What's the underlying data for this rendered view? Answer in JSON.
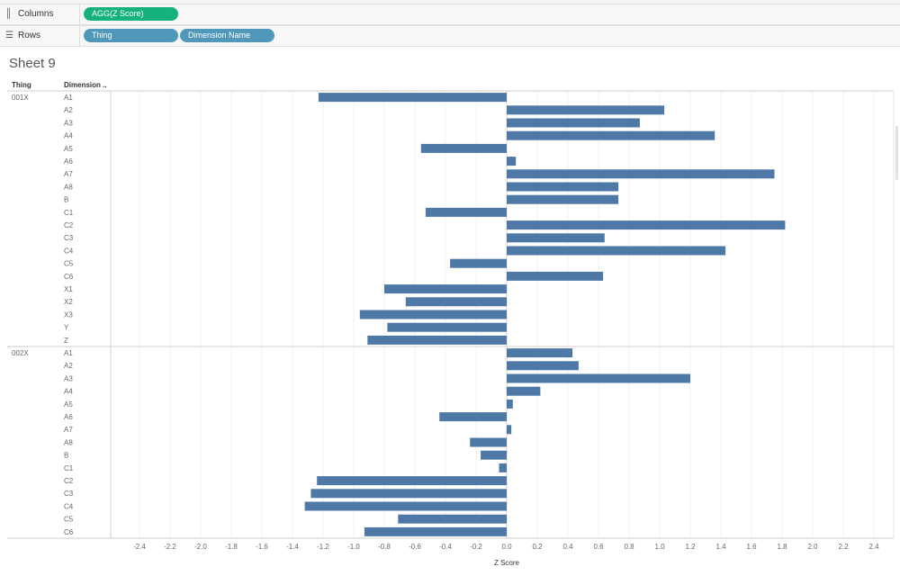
{
  "shelves": {
    "columns": {
      "label": "Columns",
      "pills": [
        "AGG(Z Score)"
      ]
    },
    "rows": {
      "label": "Rows",
      "pills": [
        "Thing",
        "Dimension Name"
      ]
    }
  },
  "sheet_title": "Sheet 9",
  "colors": {
    "bar": "#4e79a7",
    "columns_pill": "#16b27c",
    "rows_pill": "#4f98b9"
  },
  "chart_data": {
    "type": "bar",
    "orientation": "horizontal",
    "row_headers": [
      "Thing",
      "Dimension .."
    ],
    "xlabel": "Z Score",
    "xlim": [
      -2.6,
      2.6
    ],
    "ticks": [
      -2.4,
      -2.2,
      -2.0,
      -1.8,
      -1.6,
      -1.4,
      -1.2,
      -1.0,
      -0.8,
      -0.6,
      -0.4,
      -0.2,
      0.0,
      0.2,
      0.4,
      0.6,
      0.8,
      1.0,
      1.2,
      1.4,
      1.6,
      1.8,
      2.0,
      2.2,
      2.4
    ],
    "tick_labels": [
      "-2.4",
      "-2.2",
      "-2.0",
      "-1.8",
      "-1.6",
      "-1.4",
      "-1.2",
      "-1.0",
      "-0.8",
      "-0.6",
      "-0.4",
      "-0.2",
      "0.0",
      "0.2",
      "0.4",
      "0.6",
      "0.8",
      "1.0",
      "1.2",
      "1.4",
      "1.6",
      "1.8",
      "2.0",
      "2.2",
      "2.4"
    ],
    "groups": [
      {
        "name": "001X",
        "categories": [
          "A1",
          "A2",
          "A3",
          "A4",
          "A5",
          "A6",
          "A7",
          "A8",
          "B",
          "C1",
          "C2",
          "C3",
          "C4",
          "C5",
          "C6",
          "X1",
          "X2",
          "X3",
          "Y",
          "Z"
        ],
        "values": [
          -1.23,
          1.03,
          0.87,
          1.36,
          -0.56,
          0.06,
          1.75,
          0.73,
          0.73,
          -0.53,
          1.82,
          0.64,
          1.43,
          -0.37,
          0.63,
          -0.8,
          -0.66,
          -0.96,
          -0.78,
          -0.91
        ]
      },
      {
        "name": "002X",
        "categories": [
          "A1",
          "A2",
          "A3",
          "A4",
          "A5",
          "A6",
          "A7",
          "A8",
          "B",
          "C1",
          "C2",
          "C3",
          "C4",
          "C5",
          "C6"
        ],
        "values": [
          0.43,
          0.47,
          1.2,
          0.22,
          0.04,
          -0.44,
          0.03,
          -0.24,
          -0.17,
          -0.05,
          -1.24,
          -1.28,
          -1.32,
          -0.71,
          -0.93
        ]
      }
    ]
  }
}
